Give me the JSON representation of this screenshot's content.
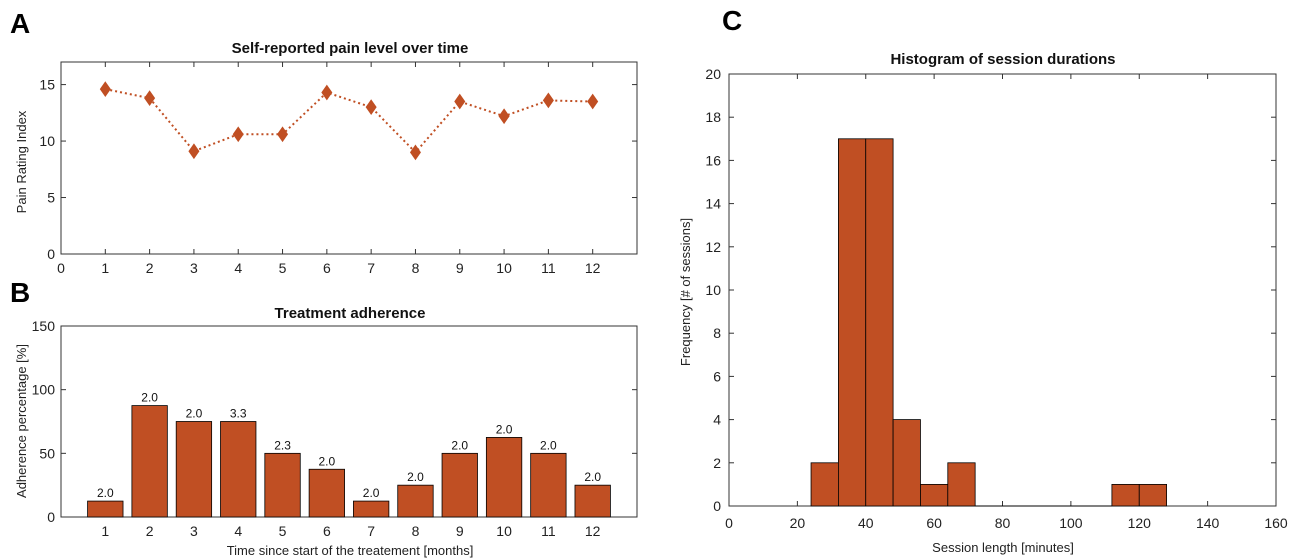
{
  "panels": {
    "a": "A",
    "b": "B",
    "c": "C"
  },
  "colors": {
    "accent": "#C04F23",
    "edge": "#000000"
  },
  "chart_data": [
    {
      "type": "line",
      "title": "Self-reported pain level over time",
      "xlabel": "",
      "ylabel": "Pain Rating Index",
      "x": [
        1,
        2,
        3,
        4,
        5,
        6,
        7,
        8,
        9,
        10,
        11,
        12
      ],
      "values": [
        14.6,
        13.8,
        9.1,
        10.6,
        10.6,
        14.3,
        13.0,
        9.0,
        13.5,
        12.2,
        13.6,
        13.5
      ],
      "xlim": [
        0,
        13
      ],
      "ylim": [
        0,
        17
      ],
      "xticks": [
        0,
        1,
        2,
        3,
        4,
        5,
        6,
        7,
        8,
        9,
        10,
        11,
        12
      ],
      "yticks": [
        0,
        5,
        10,
        15
      ],
      "marker": "diamond",
      "linestyle": "dotted"
    },
    {
      "type": "bar",
      "title": "Treatment adherence",
      "xlabel": "Time since start of the treatement [months]",
      "ylabel": "Adherence percentage [%]",
      "categories": [
        "1",
        "2",
        "3",
        "4",
        "5",
        "6",
        "7",
        "8",
        "9",
        "10",
        "11",
        "12"
      ],
      "values": [
        12.5,
        87.5,
        75,
        75,
        50,
        37.5,
        12.5,
        25,
        50,
        62.5,
        50,
        25
      ],
      "data_labels": [
        "2.0",
        "2.0",
        "2.0",
        "3.3",
        "2.3",
        "2.0",
        "2.0",
        "2.0",
        "2.0",
        "2.0",
        "2.0",
        "2.0"
      ],
      "ylim": [
        0,
        150
      ],
      "yticks": [
        0,
        50,
        100,
        150
      ]
    },
    {
      "type": "bar",
      "title": "Histogram of session durations",
      "xlabel": "Session length [minutes]",
      "ylabel": "Frequency [# of sessions]",
      "bins": [
        {
          "start": 24,
          "end": 32,
          "count": 2
        },
        {
          "start": 32,
          "end": 40,
          "count": 17
        },
        {
          "start": 40,
          "end": 48,
          "count": 17
        },
        {
          "start": 48,
          "end": 56,
          "count": 4
        },
        {
          "start": 56,
          "end": 64,
          "count": 1
        },
        {
          "start": 64,
          "end": 72,
          "count": 2
        },
        {
          "start": 112,
          "end": 120,
          "count": 1
        },
        {
          "start": 120,
          "end": 128,
          "count": 1
        }
      ],
      "xlim": [
        0,
        160
      ],
      "ylim": [
        0,
        20
      ],
      "xticks": [
        0,
        20,
        40,
        60,
        80,
        100,
        120,
        140,
        160
      ],
      "yticks": [
        0,
        2,
        4,
        6,
        8,
        10,
        12,
        14,
        16,
        18,
        20
      ]
    }
  ]
}
